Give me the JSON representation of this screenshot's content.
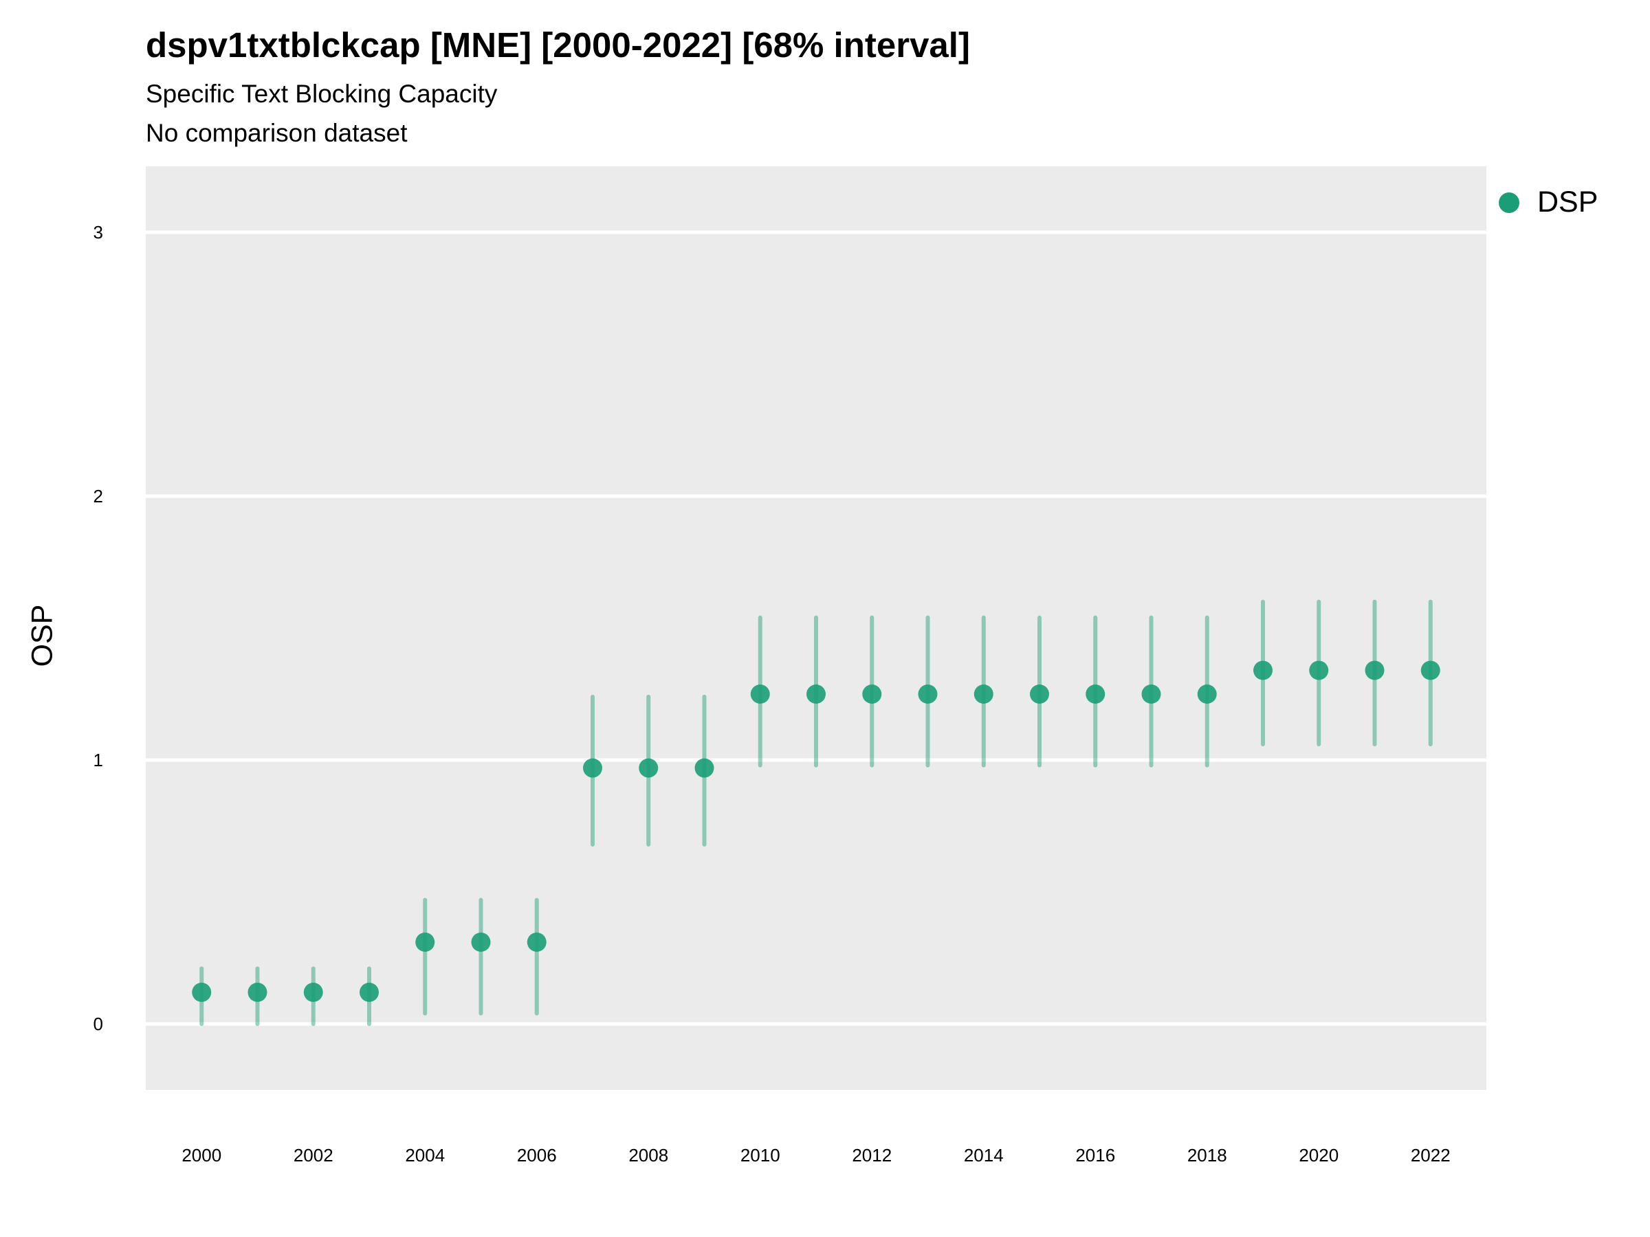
{
  "chart_data": {
    "type": "scatter",
    "title": "dspv1txtblckcap [MNE] [2000-2022] [68% interval]",
    "subtitle": "Specific Text Blocking Capacity",
    "caption": "No comparison dataset",
    "xlabel": "",
    "ylabel": "OSP",
    "xlim": [
      1999,
      2023
    ],
    "ylim": [
      -0.25,
      3.25
    ],
    "x_ticks": [
      2000,
      2002,
      2004,
      2006,
      2008,
      2010,
      2012,
      2014,
      2016,
      2018,
      2020,
      2022
    ],
    "y_ticks": [
      0,
      1,
      2,
      3
    ],
    "grid": true,
    "legend_position": "right",
    "series": [
      {
        "name": "DSP",
        "color": "#1b9e77",
        "x": [
          2000,
          2001,
          2002,
          2003,
          2004,
          2005,
          2006,
          2007,
          2008,
          2009,
          2010,
          2011,
          2012,
          2013,
          2014,
          2015,
          2016,
          2017,
          2018,
          2019,
          2020,
          2021,
          2022
        ],
        "y": [
          0.12,
          0.12,
          0.12,
          0.12,
          0.31,
          0.31,
          0.31,
          0.97,
          0.97,
          0.97,
          1.25,
          1.25,
          1.25,
          1.25,
          1.25,
          1.25,
          1.25,
          1.25,
          1.25,
          1.34,
          1.34,
          1.34,
          1.34
        ],
        "lower": [
          0.0,
          0.0,
          0.0,
          0.0,
          0.04,
          0.04,
          0.04,
          0.68,
          0.68,
          0.68,
          0.98,
          0.98,
          0.98,
          0.98,
          0.98,
          0.98,
          0.98,
          0.98,
          0.98,
          1.06,
          1.06,
          1.06,
          1.06
        ],
        "upper": [
          0.21,
          0.21,
          0.21,
          0.21,
          0.47,
          0.47,
          0.47,
          1.24,
          1.24,
          1.24,
          1.54,
          1.54,
          1.54,
          1.54,
          1.54,
          1.54,
          1.54,
          1.54,
          1.54,
          1.6,
          1.6,
          1.6,
          1.6
        ]
      }
    ]
  }
}
